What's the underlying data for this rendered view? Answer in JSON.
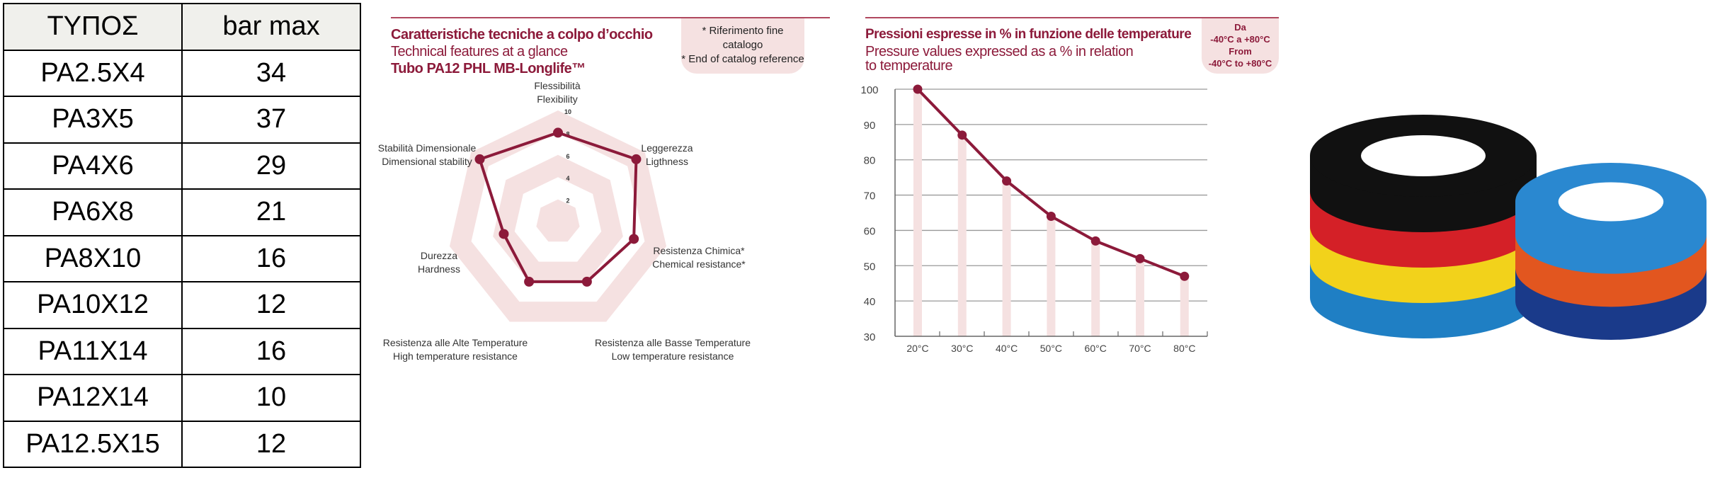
{
  "table": {
    "headers": [
      "ΤΥΠΟΣ",
      "bar max"
    ],
    "rows": [
      [
        "PA2.5X4",
        "34"
      ],
      [
        "PA3X5",
        "37"
      ],
      [
        "PA4X6",
        "29"
      ],
      [
        "PA6X8",
        "21"
      ],
      [
        "PA8X10",
        "16"
      ],
      [
        "PA10X12",
        "12"
      ],
      [
        "PA11X14",
        "16"
      ],
      [
        "PA12X14",
        "10"
      ],
      [
        "PA12.5X15",
        "12"
      ]
    ]
  },
  "radar_panel": {
    "title_it": "Caratteristiche tecniche a colpo d’occhio",
    "title_en": "Technical features at a glance",
    "product": "Tubo PA12 PHL MB-Longlife™",
    "note_it": "* Riferimento fine catalogo",
    "note_en": "* End of catalog reference"
  },
  "line_panel": {
    "title_it": "Pressioni espresse in % in funzione delle temperature",
    "title_en_1": "Pressure values expressed as a % in relation",
    "title_en_2": "to temperature",
    "range_it_1": "Da",
    "range_it_2": "-40°C a +80°C",
    "range_en_1": "From",
    "range_en_2": "-40°C to +80°C"
  },
  "chart_data": [
    {
      "type": "radar",
      "axes": [
        {
          "it": "Flessibilità",
          "en": "Flexibility"
        },
        {
          "it": "Leggerezza",
          "en": "Ligthness"
        },
        {
          "it": "Resistenza Chimica*",
          "en": "Chemical resistance*"
        },
        {
          "it": "Resistenza alle Basse Temperature",
          "en": "Low temperature resistance"
        },
        {
          "it": "Resistenza alle Alte Temperature",
          "en": "High temperature resistance"
        },
        {
          "it": "Durezza",
          "en": "Hardness"
        },
        {
          "it": "Stabilità Dimensionale",
          "en": "Dimensional stability"
        }
      ],
      "values": [
        8,
        9,
        7,
        6,
        6,
        5,
        9
      ],
      "ticks": [
        "2",
        "4",
        "6",
        "8",
        "10"
      ],
      "range": [
        0,
        10
      ],
      "color": "#8c1a3a",
      "ring_color": "#f5e1e1"
    },
    {
      "type": "line",
      "categories": [
        "20°C",
        "30°C",
        "40°C",
        "50°C",
        "60°C",
        "70°C",
        "80°C"
      ],
      "values": [
        100,
        87,
        74,
        64,
        57,
        52,
        47
      ],
      "yticks": [
        "30",
        "40",
        "50",
        "60",
        "70",
        "80",
        "90",
        "100"
      ],
      "ylim": [
        30,
        100
      ],
      "grid": true,
      "color": "#8c1a3a",
      "bar_color": "#f5e1e1"
    }
  ],
  "photo": {
    "coil_colors": [
      "#111111",
      "#d42027",
      "#f2d21b",
      "#1f7fc4",
      "#e2561f",
      "#1a3a8a",
      "#2a88d0"
    ]
  }
}
